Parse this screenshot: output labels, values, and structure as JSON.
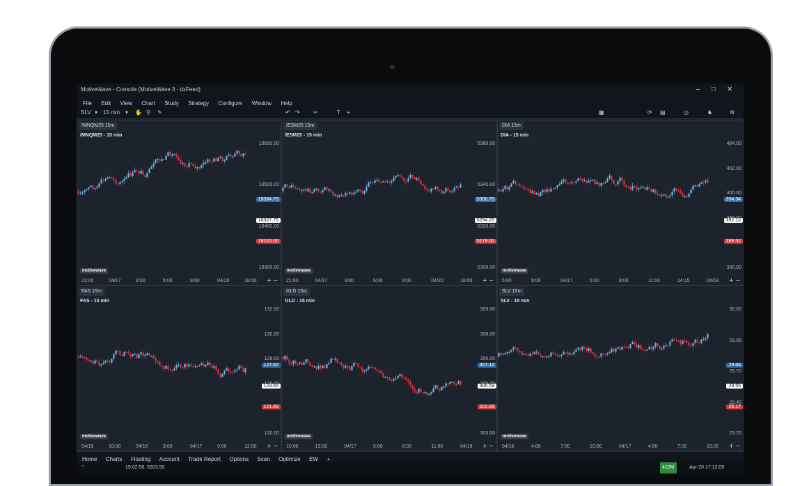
{
  "app": {
    "window_title": "MotiveWave - Console (MotiveWave 3 - dxFeed)",
    "menu": [
      "File",
      "Edit",
      "View",
      "Chart",
      "Study",
      "Strategy",
      "Configure",
      "Window",
      "Help"
    ],
    "symbol_select": "SLV",
    "interval_select": "15 min",
    "brand_badge": "motivewave"
  },
  "panels": [
    {
      "tab": "/MNQM25 15m",
      "title": "/MNQM25 - 15 min",
      "y_ticks": [
        "18600.00",
        "18500.00",
        "18400.00",
        "18300.00"
      ],
      "tags": [
        {
          "text": "18384.75",
          "color": "#2f6fb0"
        },
        {
          "text": "18327.75",
          "color": "#ffffff"
        },
        {
          "text": "18220.00",
          "color": "#d63a3a"
        }
      ],
      "x_ticks": [
        "21:00",
        "04/17",
        "3:00",
        "6:00",
        "9:00",
        "04/20",
        "18:00"
      ]
    },
    {
      "tab": "/ESM25 15m",
      "title": "/ESM25 - 15 min",
      "y_ticks": [
        "5360.00",
        "5340.00",
        "5320.00",
        "5300.00"
      ],
      "tags": [
        {
          "text": "5306.75",
          "color": "#2f6fb0"
        },
        {
          "text": "5294.25",
          "color": "#ffffff"
        },
        {
          "text": "5279.00",
          "color": "#d63a3a"
        }
      ],
      "x_ticks": [
        "21:00",
        "04/17",
        "3:00",
        "6:00",
        "9:00",
        "04/20",
        "18:00"
      ]
    },
    {
      "tab": "DIA 15m",
      "title": "DIA - 15 min",
      "y_ticks": [
        "404.00",
        "402.00",
        "400.00",
        "398.00",
        "396.00",
        "390.00"
      ],
      "tags": [
        {
          "text": "394.34",
          "color": "#2f6fb0"
        },
        {
          "text": "392.12",
          "color": "#ffffff"
        },
        {
          "text": "389.52",
          "color": "#d63a3a"
        }
      ],
      "x_ticks": [
        "5:00",
        "9:00",
        "04/17",
        "5:00",
        "8:00",
        "11:00",
        "14:15",
        "04/18"
      ]
    },
    {
      "tab": "FAS 15m",
      "title": "FAS - 15 min",
      "y_ticks": [
        "132.00",
        "130.00",
        "128.00",
        "126.00",
        "124.00",
        "120.00"
      ],
      "tags": [
        {
          "text": "127.37",
          "color": "#2f6fb0"
        },
        {
          "text": "123.65",
          "color": "#ffffff"
        },
        {
          "text": "121.49",
          "color": "#d63a3a"
        }
      ],
      "x_ticks": [
        "04/15",
        "10:00",
        "04/16",
        "9:00",
        "04/17",
        "9:00",
        "12:00"
      ]
    },
    {
      "tab": "GLD 15m",
      "title": "GLD - 15 min",
      "y_ticks": [
        "309.00",
        "308.00",
        "306.00",
        "305.00",
        "304.00",
        "303.00"
      ],
      "tags": [
        {
          "text": "307.12",
          "color": "#2f6fb0"
        },
        {
          "text": "306.59",
          "color": "#ffffff"
        },
        {
          "text": "302.89",
          "color": "#d63a3a"
        }
      ],
      "x_ticks": [
        "10:00",
        "13:00",
        "04/17",
        "5:00",
        "8:00",
        "11:00",
        "04/18"
      ]
    },
    {
      "tab": "SLV 15m",
      "title": "SLV - 15 min",
      "y_ticks": [
        "30.00",
        "29.85",
        "29.70",
        "29.40",
        "29.25"
      ],
      "tags": [
        {
          "text": "29.68",
          "color": "#2f6fb0"
        },
        {
          "text": "29.55",
          "color": "#ffffff"
        },
        {
          "text": "25.17",
          "color": "#d63a3a"
        }
      ],
      "x_ticks": [
        "04/16",
        "4:00",
        "7:00",
        "10:00",
        "04/17",
        "4:00",
        "7:00",
        "10:00"
      ]
    }
  ],
  "statusbar": [
    "Home",
    "Charts",
    "Floating",
    "Account",
    "Trade Report",
    "Options",
    "Scan",
    "Optimize",
    "EW"
  ],
  "bottom": {
    "time_price": "19:02:58, 5303.50",
    "datetime": "Apr-20 17:12:09",
    "mem": "412M"
  },
  "colors": {
    "bull": "#6cb4e6",
    "bear": "#e0343e",
    "bg": "#1c232d"
  }
}
